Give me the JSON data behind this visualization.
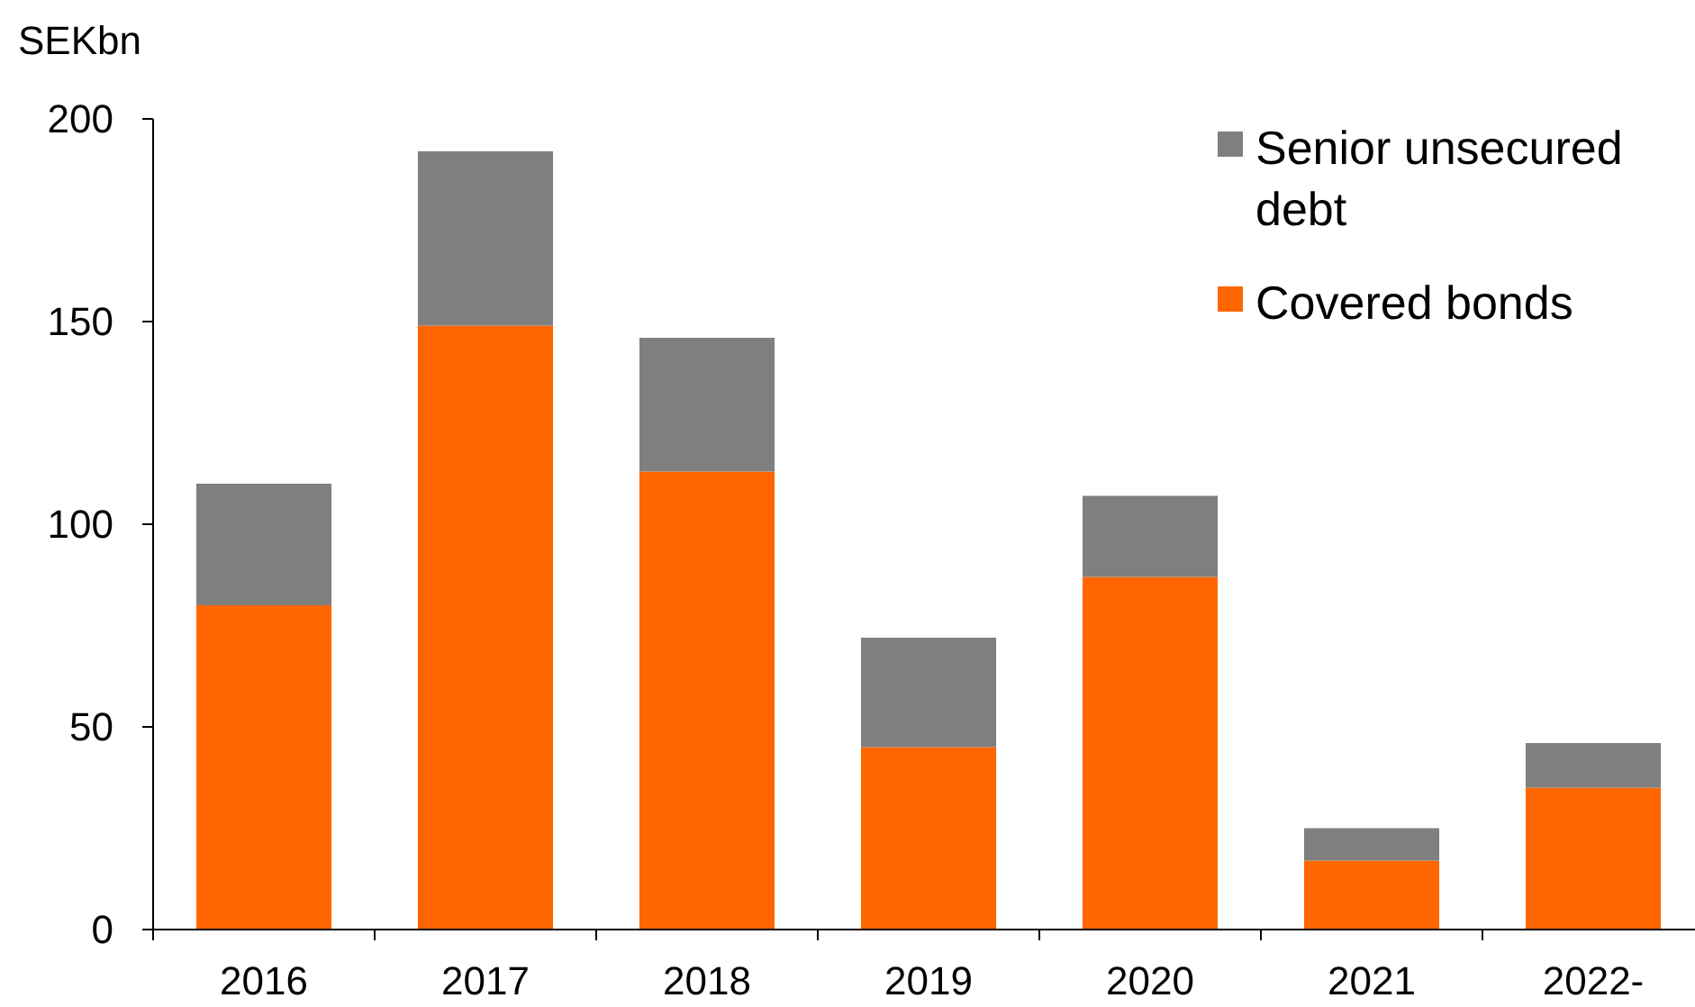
{
  "chart_data": {
    "type": "bar",
    "ylabel": "SEKbn",
    "categories": [
      "2016",
      "2017",
      "2018",
      "2019",
      "2020",
      "2021",
      "2022-"
    ],
    "series": [
      {
        "name": "Covered bonds",
        "color": "#ff6600",
        "values": [
          80,
          149,
          113,
          45,
          87,
          17,
          35
        ]
      },
      {
        "name": "Senior unsecured debt",
        "color": "#7f7f7f",
        "values": [
          30,
          43,
          33,
          27,
          20,
          8,
          11
        ]
      }
    ],
    "stacked": true,
    "ylim": [
      0,
      200
    ],
    "yticks": [
      0,
      50,
      100,
      150,
      200
    ],
    "grid": false,
    "legend": "top right"
  }
}
